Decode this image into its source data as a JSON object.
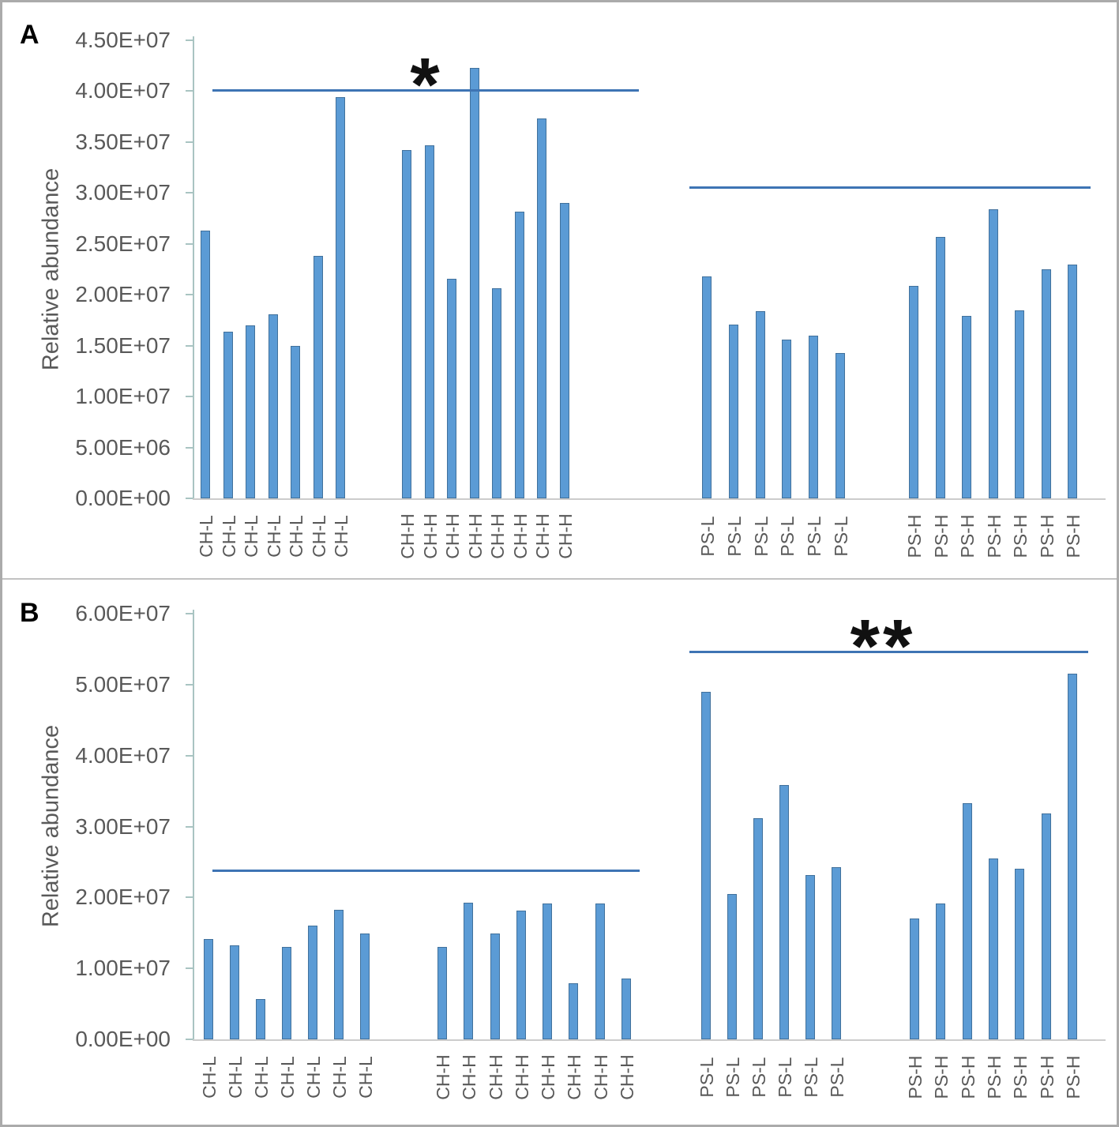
{
  "figure_title": "Two-panel bar chart of relative abundance for CH and PS sample groups",
  "colors": {
    "bar_fill": "#5b9bd5",
    "bar_border": "#41719c",
    "significance_line": "#3e74b4",
    "axis_line": "#a9c4c2",
    "baseline": "#cccccc",
    "tick_text": "#595959",
    "asterisk": "#111111",
    "frame": "#ababab",
    "divider": "#c2c2c2"
  },
  "chart_data": [
    {
      "type": "bar",
      "panel_label": "A",
      "title": "",
      "xlabel": "",
      "ylabel": "Relative abundance",
      "ylim": [
        0,
        45000000
      ],
      "grid": false,
      "legend": false,
      "ytick_labels": [
        "4.50E+07",
        "4.00E+07",
        "3.50E+07",
        "3.00E+07",
        "2.50E+07",
        "2.00E+07",
        "1.50E+07",
        "1.00E+07",
        "5.00E+06",
        "0.00E+00"
      ],
      "ytick_values": [
        45000000,
        40000000,
        35000000,
        30000000,
        25000000,
        20000000,
        15000000,
        10000000,
        5000000,
        0
      ],
      "groups": [
        {
          "label": "CH-L",
          "values": [
            26300000,
            16400000,
            17000000,
            18100000,
            15000000,
            23800000,
            39400000
          ]
        },
        {
          "label": "CH-H",
          "values": [
            34200000,
            34700000,
            21600000,
            42300000,
            20600000,
            28200000,
            37300000,
            29000000
          ]
        },
        {
          "label": "PS-L",
          "values": [
            21800000,
            17100000,
            18400000,
            15600000,
            16000000,
            14300000
          ]
        },
        {
          "label": "PS-H",
          "values": [
            20900000,
            25700000,
            17900000,
            28400000,
            18500000,
            22500000,
            23000000
          ]
        }
      ],
      "significance_lines": [
        {
          "value": 40000000,
          "label": "*",
          "spans": "CH-L to CH-H"
        },
        {
          "value": 30500000,
          "label": "",
          "spans": "PS-L to PS-H"
        }
      ]
    },
    {
      "type": "bar",
      "panel_label": "B",
      "title": "",
      "xlabel": "",
      "ylabel": "Relative abundance",
      "ylim": [
        0,
        60000000
      ],
      "grid": false,
      "legend": false,
      "ytick_labels": [
        "6.00E+07",
        "5.00E+07",
        "4.00E+07",
        "3.00E+07",
        "2.00E+07",
        "1.00E+07",
        "0.00E+00"
      ],
      "ytick_values": [
        60000000,
        50000000,
        40000000,
        30000000,
        20000000,
        10000000,
        0
      ],
      "groups": [
        {
          "label": "CH-L",
          "values": [
            14100000,
            13300000,
            5700000,
            13000000,
            16000000,
            18300000,
            14900000
          ]
        },
        {
          "label": "CH-H",
          "values": [
            13000000,
            19300000,
            14900000,
            18200000,
            19100000,
            7900000,
            19100000,
            8600000
          ]
        },
        {
          "label": "PS-L",
          "values": [
            49000000,
            20500000,
            31200000,
            35800000,
            23200000,
            24300000
          ]
        },
        {
          "label": "PS-H",
          "values": [
            17000000,
            19200000,
            33300000,
            25500000,
            24000000,
            31800000,
            51500000
          ]
        }
      ],
      "significance_lines": [
        {
          "value": 23700000,
          "label": "",
          "spans": "CH-L to CH-H"
        },
        {
          "value": 54500000,
          "label": "**",
          "spans": "PS-L to PS-H"
        }
      ]
    }
  ]
}
